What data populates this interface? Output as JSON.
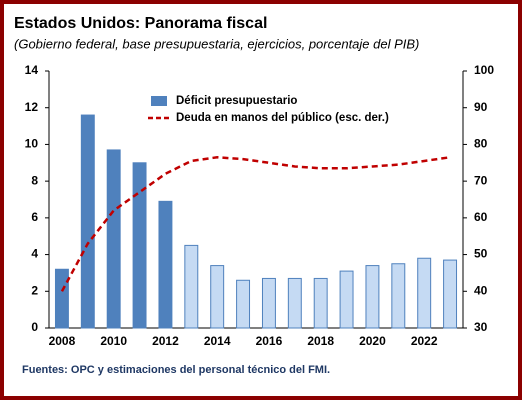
{
  "chart_data": {
    "type": "bar_line",
    "title": "Estados Unidos: Panorama fiscal",
    "subtitle": "(Gobierno federal, base presupuestaria, ejercicios, porcentaje del PIB)",
    "footnote": "Fuentes: OPC y estimaciones del personal técnico del FMI.",
    "categories": [
      "2008",
      null,
      "2010",
      null,
      "2012",
      null,
      "2014",
      null,
      "2016",
      null,
      "2018",
      null,
      "2020",
      null,
      "2022",
      null
    ],
    "series": [
      {
        "name": "Déficit presupuestario",
        "type": "bar",
        "color": "#4f81bd",
        "colors": [
          "#4f81bd",
          "#4f81bd",
          "#4f81bd",
          "#4f81bd",
          "#4f81bd",
          "#c5daf3",
          "#c5daf3",
          "#c5daf3",
          "#c5daf3",
          "#c5daf3",
          "#c5daf3",
          "#c5daf3",
          "#c5daf3",
          "#c5daf3",
          "#c5daf3",
          "#c5daf3"
        ],
        "values": [
          3.2,
          11.6,
          9.7,
          9.0,
          6.9,
          4.5,
          3.4,
          2.6,
          2.7,
          2.7,
          2.7,
          3.1,
          3.4,
          3.5,
          3.8,
          3.7
        ]
      },
      {
        "name": "Deuda en manos del público (esc. der.)",
        "type": "line",
        "color": "#c00000",
        "axis": "y2",
        "values": [
          40,
          53,
          62,
          67,
          72,
          75.5,
          76.5,
          76,
          75,
          74,
          73.5,
          73.5,
          74,
          74.5,
          75.5,
          76.5
        ]
      }
    ],
    "ylim": [
      0,
      14
    ],
    "yticks": [
      0,
      2,
      4,
      6,
      8,
      10,
      12,
      14
    ],
    "y2lim": [
      30,
      100
    ],
    "y2ticks": [
      30,
      40,
      50,
      60,
      70,
      80,
      90,
      100
    ]
  }
}
